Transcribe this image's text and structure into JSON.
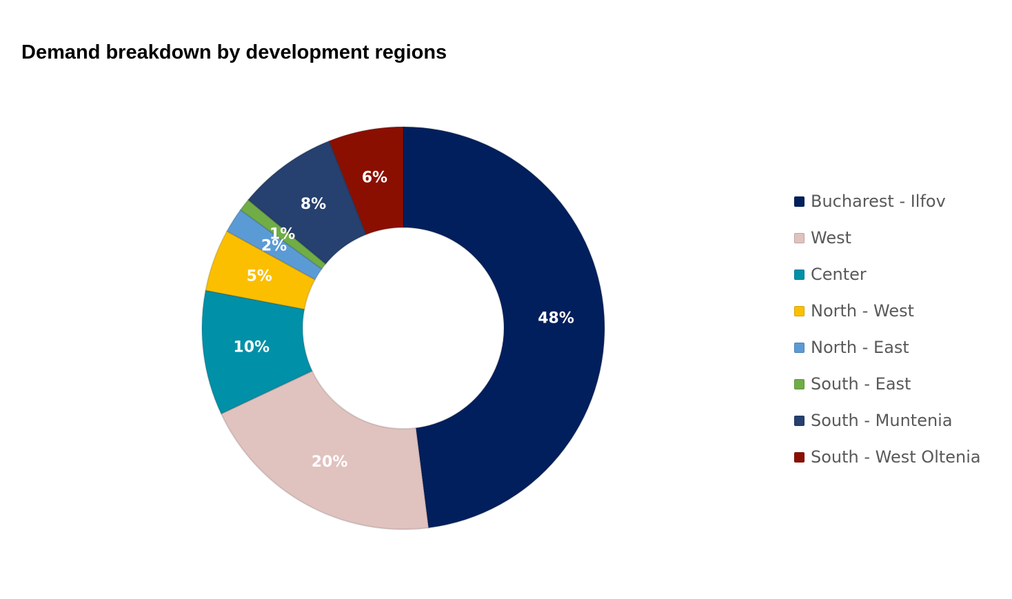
{
  "chart_data": {
    "type": "pie",
    "subtype": "donut",
    "title": "Demand breakdown by development regions",
    "categories": [
      "Bucharest - Ilfov",
      "West",
      "Center",
      "North - West",
      "North - East",
      "South - East",
      "South - Muntenia",
      "South - West Oltenia"
    ],
    "values": [
      48,
      20,
      10,
      5,
      2,
      1,
      8,
      6
    ],
    "data_labels": [
      "48%",
      "20%",
      "10%",
      "5%",
      "2%",
      "1%",
      "8%",
      "6%"
    ],
    "colors": [
      "#001f5c",
      "#e0c2bf",
      "#0090a8",
      "#fbbf00",
      "#5b9bd5",
      "#70ad47",
      "#26406f",
      "#8b0f00"
    ],
    "legend_position": "right"
  }
}
